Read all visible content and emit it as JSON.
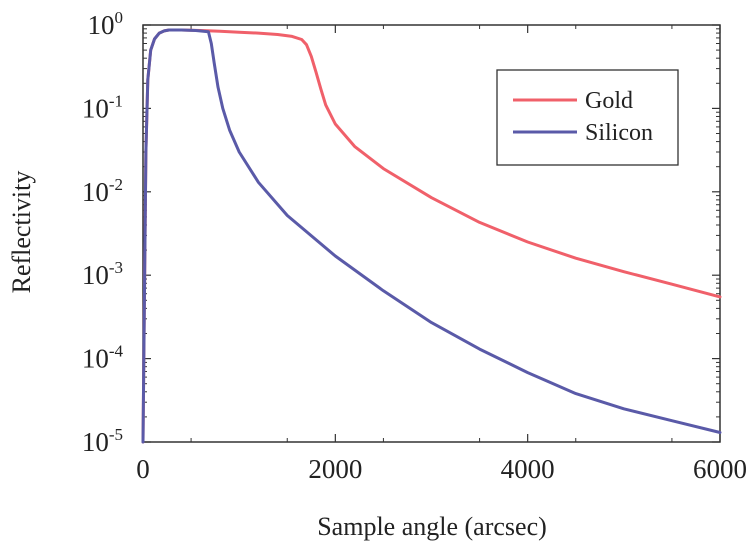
{
  "chart_data": {
    "type": "line",
    "xlabel": "Sample angle (arcsec)",
    "ylabel": "Reflectivity",
    "xlim": [
      0,
      6000
    ],
    "ylim": [
      1e-05,
      1
    ],
    "yscale": "log",
    "x_ticks": [
      0,
      2000,
      4000,
      6000
    ],
    "y_ticks": [
      {
        "base": "10",
        "exp": "0",
        "value": 1
      },
      {
        "base": "10",
        "exp": "-1",
        "value": 0.1
      },
      {
        "base": "10",
        "exp": "-2",
        "value": 0.01
      },
      {
        "base": "10",
        "exp": "-3",
        "value": 0.001
      },
      {
        "base": "10",
        "exp": "-4",
        "value": 0.0001
      },
      {
        "base": "10",
        "exp": "-5",
        "value": 1e-05
      }
    ],
    "grid": false,
    "legend_position": "top-right",
    "series": [
      {
        "name": "Gold",
        "color": "#f0606a",
        "x": [
          0,
          15,
          30,
          50,
          80,
          120,
          170,
          220,
          270,
          400,
          600,
          800,
          1000,
          1200,
          1400,
          1550,
          1650,
          1700,
          1750,
          1800,
          1850,
          1900,
          2000,
          2200,
          2500,
          3000,
          3500,
          4000,
          4500,
          5000,
          5500,
          6000
        ],
        "y": [
          1e-05,
          0.0005,
          0.03,
          0.22,
          0.5,
          0.68,
          0.8,
          0.85,
          0.87,
          0.87,
          0.86,
          0.84,
          0.82,
          0.8,
          0.77,
          0.73,
          0.67,
          0.58,
          0.42,
          0.27,
          0.17,
          0.11,
          0.065,
          0.035,
          0.019,
          0.0085,
          0.0043,
          0.0025,
          0.0016,
          0.0011,
          0.00078,
          0.00055
        ]
      },
      {
        "name": "Silicon",
        "color": "#5a5aa8",
        "x": [
          0,
          15,
          30,
          50,
          80,
          120,
          170,
          220,
          270,
          400,
          550,
          680,
          710,
          740,
          780,
          830,
          900,
          1000,
          1200,
          1500,
          2000,
          2500,
          3000,
          3500,
          4000,
          4500,
          5000,
          5500,
          6000
        ],
        "y": [
          1e-05,
          0.0005,
          0.03,
          0.22,
          0.5,
          0.68,
          0.8,
          0.85,
          0.87,
          0.87,
          0.86,
          0.83,
          0.6,
          0.35,
          0.18,
          0.1,
          0.055,
          0.03,
          0.013,
          0.0052,
          0.0017,
          0.00065,
          0.00027,
          0.00013,
          6.8e-05,
          3.8e-05,
          2.5e-05,
          1.8e-05,
          1.3e-05
        ]
      }
    ]
  }
}
